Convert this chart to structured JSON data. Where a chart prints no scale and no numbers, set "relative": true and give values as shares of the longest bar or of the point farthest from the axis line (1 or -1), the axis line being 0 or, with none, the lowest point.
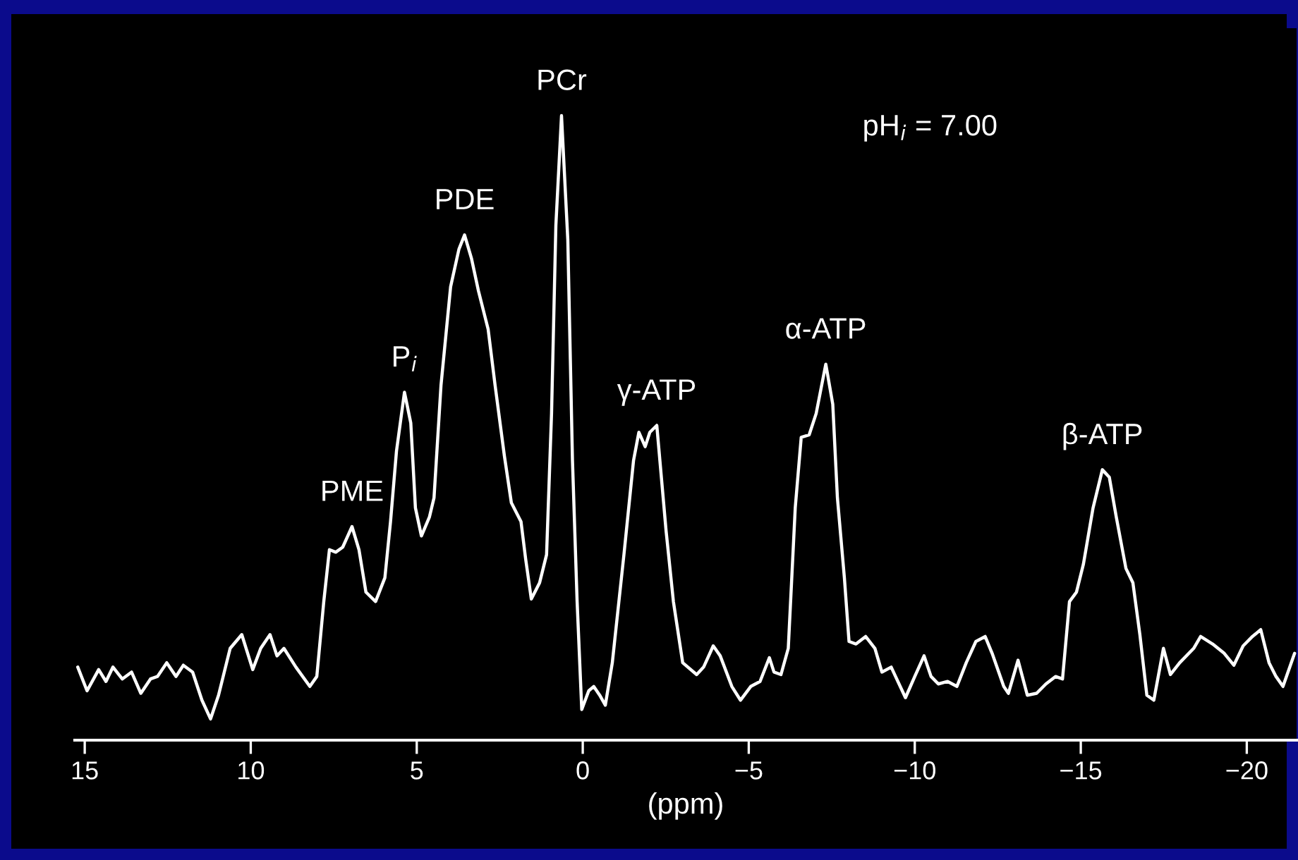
{
  "chart_data": {
    "type": "line",
    "relative": true,
    "xlabel": "(ppm)",
    "xlim": [
      15.3,
      -21.5
    ],
    "xticks": [
      15,
      10,
      5,
      0,
      {
        "value": -5,
        "label": "−5"
      },
      {
        "value": -10,
        "label": "−10"
      },
      {
        "value": -15,
        "label": "−15"
      },
      {
        "value": -20,
        "label": "−20"
      }
    ],
    "grid": false,
    "marker": "none",
    "line_style": "solid",
    "tick_labels": "x",
    "annotations": [
      {
        "text": "PME",
        "x": 6.95,
        "y": 0.342
      },
      {
        "text": "P$_{i}$",
        "x": 5.37,
        "y": 0.557
      },
      {
        "text": "PDE",
        "x": 3.56,
        "y": 0.809
      },
      {
        "text": "PCr",
        "x": 0.64,
        "y": 1.0
      },
      {
        "text": "γ-ATP",
        "x": -2.23,
        "y": 0.504
      },
      {
        "text": "α-ATP",
        "x": -7.32,
        "y": 0.602
      },
      {
        "text": "β-ATP",
        "x": -15.65,
        "y": 0.433
      },
      "pH$_{i}$ = 7.00"
    ],
    "series": [
      {
        "color": "#ffffff",
        "x": [
          15.21,
          14.93,
          14.58,
          14.36,
          14.15,
          13.87,
          13.59,
          13.31,
          13.02,
          12.81,
          12.53,
          12.25,
          12.03,
          11.75,
          11.47,
          11.21,
          10.97,
          10.62,
          10.27,
          9.94,
          9.7,
          9.42,
          9.21,
          9.0,
          8.64,
          8.22,
          8.01,
          7.8,
          7.63,
          7.44,
          7.23,
          6.95,
          6.74,
          6.53,
          6.24,
          5.96,
          5.79,
          5.61,
          5.37,
          5.18,
          5.04,
          4.86,
          4.62,
          4.48,
          4.27,
          3.98,
          3.73,
          3.56,
          3.35,
          3.14,
          2.85,
          2.64,
          2.36,
          2.15,
          1.86,
          1.72,
          1.55,
          1.3,
          1.09,
          0.94,
          0.81,
          0.64,
          0.45,
          0.31,
          0.17,
          0.03,
          -0.18,
          -0.33,
          -0.51,
          -0.68,
          -0.89,
          -1.24,
          -1.53,
          -1.69,
          -1.88,
          -2.02,
          -2.23,
          -2.51,
          -2.73,
          -3.01,
          -3.43,
          -3.64,
          -3.93,
          -4.14,
          -4.49,
          -4.75,
          -5.06,
          -5.34,
          -5.62,
          -5.76,
          -5.97,
          -6.19,
          -6.4,
          -6.58,
          -6.82,
          -7.03,
          -7.32,
          -7.53,
          -7.67,
          -7.88,
          -8.02,
          -8.23,
          -8.52,
          -8.8,
          -9.01,
          -9.29,
          -9.72,
          -10.0,
          -10.28,
          -10.49,
          -10.71,
          -10.99,
          -11.27,
          -11.55,
          -11.84,
          -12.12,
          -12.33,
          -12.68,
          -12.82,
          -13.11,
          -13.39,
          -13.67,
          -13.95,
          -14.24,
          -14.45,
          -14.66,
          -14.87,
          -15.08,
          -15.37,
          -15.65,
          -15.86,
          -16.07,
          -16.36,
          -16.57,
          -16.78,
          -16.99,
          -17.2,
          -17.49,
          -17.7,
          -17.98,
          -18.4,
          -18.61,
          -18.97,
          -19.32,
          -19.61,
          -19.89,
          -20.17,
          -20.42,
          -20.67,
          -20.88,
          -21.09,
          -21.44
        ],
        "values": [
          0.117,
          0.079,
          0.113,
          0.094,
          0.117,
          0.098,
          0.109,
          0.075,
          0.098,
          0.102,
          0.124,
          0.102,
          0.12,
          0.109,
          0.064,
          0.034,
          0.072,
          0.147,
          0.169,
          0.113,
          0.147,
          0.169,
          0.135,
          0.147,
          0.117,
          0.086,
          0.102,
          0.222,
          0.305,
          0.301,
          0.309,
          0.342,
          0.305,
          0.237,
          0.222,
          0.26,
          0.35,
          0.463,
          0.557,
          0.508,
          0.372,
          0.327,
          0.357,
          0.388,
          0.568,
          0.726,
          0.786,
          0.809,
          0.771,
          0.719,
          0.658,
          0.568,
          0.455,
          0.38,
          0.35,
          0.29,
          0.226,
          0.252,
          0.297,
          0.523,
          0.824,
          1.0,
          0.801,
          0.448,
          0.222,
          0.049,
          0.079,
          0.086,
          0.072,
          0.056,
          0.124,
          0.297,
          0.448,
          0.493,
          0.47,
          0.493,
          0.504,
          0.335,
          0.222,
          0.124,
          0.105,
          0.117,
          0.151,
          0.135,
          0.086,
          0.064,
          0.086,
          0.094,
          0.132,
          0.109,
          0.105,
          0.147,
          0.372,
          0.485,
          0.489,
          0.523,
          0.602,
          0.538,
          0.388,
          0.26,
          0.158,
          0.154,
          0.166,
          0.147,
          0.109,
          0.117,
          0.068,
          0.102,
          0.135,
          0.102,
          0.09,
          0.094,
          0.086,
          0.124,
          0.158,
          0.166,
          0.139,
          0.086,
          0.075,
          0.128,
          0.072,
          0.075,
          0.09,
          0.102,
          0.098,
          0.222,
          0.237,
          0.282,
          0.372,
          0.433,
          0.421,
          0.357,
          0.275,
          0.252,
          0.169,
          0.072,
          0.064,
          0.147,
          0.105,
          0.124,
          0.147,
          0.166,
          0.154,
          0.139,
          0.12,
          0.151,
          0.166,
          0.177,
          0.124,
          0.102,
          0.086,
          0.139
        ]
      }
    ]
  }
}
